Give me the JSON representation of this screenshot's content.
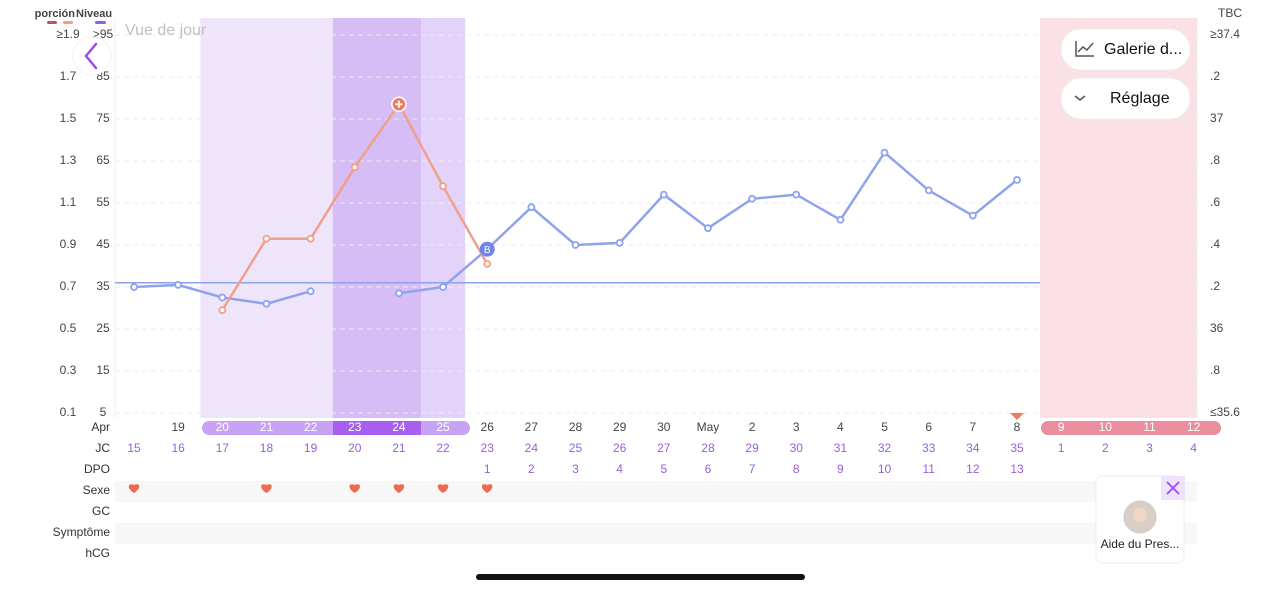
{
  "header": {
    "title": "Vue de jour"
  },
  "buttons": {
    "gallery": "Galerie d...",
    "settings": "Réglage"
  },
  "assistant": {
    "label": "Aide du Pres..."
  },
  "rows": {
    "labels": [
      "Apr",
      "JC",
      "DPO",
      "Sexe",
      "GC",
      "Symptôme",
      "hCG"
    ],
    "jc": [
      15,
      16,
      17,
      18,
      19,
      20,
      21,
      22,
      23,
      24,
      25,
      26,
      27,
      28,
      29,
      30,
      31,
      32,
      33,
      34,
      35,
      1,
      2,
      3,
      4
    ],
    "dpo": [
      null,
      null,
      null,
      null,
      null,
      null,
      null,
      null,
      1,
      2,
      3,
      4,
      5,
      6,
      7,
      8,
      9,
      10,
      11,
      12,
      13,
      null,
      null,
      null,
      null
    ]
  },
  "chart_data": {
    "type": "line",
    "categories": [
      null,
      "19",
      "20",
      "21",
      "22",
      "23",
      "24",
      "25",
      "26",
      "27",
      "28",
      "29",
      "30",
      "May",
      "2",
      "3",
      "4",
      "5",
      "6",
      "7",
      "8",
      "9",
      "10",
      "11",
      "12"
    ],
    "series": [
      {
        "name": "Niveau",
        "color": "#8fa2ee",
        "axis": "y",
        "values": [
          35,
          35.5,
          32.5,
          31,
          34,
          null,
          33.5,
          35,
          44,
          54,
          45,
          45.5,
          57,
          49,
          56,
          57,
          51,
          67,
          58,
          52,
          60.5,
          null,
          null,
          null,
          null
        ]
      },
      {
        "name": "porción",
        "color": "#f0a08a",
        "axis": "y3",
        "values": [
          null,
          null,
          0.59,
          0.93,
          0.93,
          1.27,
          1.57,
          1.18,
          0.81,
          null,
          null,
          null,
          null,
          null,
          null,
          null,
          null,
          null,
          null,
          null,
          null,
          null,
          null,
          null,
          null
        ]
      }
    ],
    "annotation": "B",
    "baseline": 36,
    "ylim": [
      5,
      95
    ],
    "yticks": [
      {
        "value": 95,
        "label": ">95"
      },
      85,
      75,
      65,
      55,
      45,
      35,
      25,
      15,
      5
    ],
    "y3lim": [
      0.1,
      1.9
    ],
    "y3ticks": [
      {
        "value": 1.9,
        "label": "≥1.9"
      },
      1.7,
      1.5,
      1.3,
      1.1,
      0.9,
      0.7,
      0.5,
      0.3,
      0.1
    ],
    "y2label": "TBC",
    "y2lim": [
      35.6,
      37.4
    ],
    "y2ticks": [
      {
        "value": 37.4,
        "label": "≥37.4"
      },
      {
        "value": 37.2,
        "label": ".2"
      },
      37,
      {
        "value": 36.8,
        "label": ".8"
      },
      {
        "value": 36.6,
        "label": ".6"
      },
      {
        "value": 36.4,
        "label": ".4"
      },
      {
        "value": 36.2,
        "label": ".2"
      },
      36,
      {
        "value": 35.8,
        "label": ".8"
      },
      {
        "value": 35.6,
        "label": "≤35.6"
      }
    ],
    "grid": true
  }
}
